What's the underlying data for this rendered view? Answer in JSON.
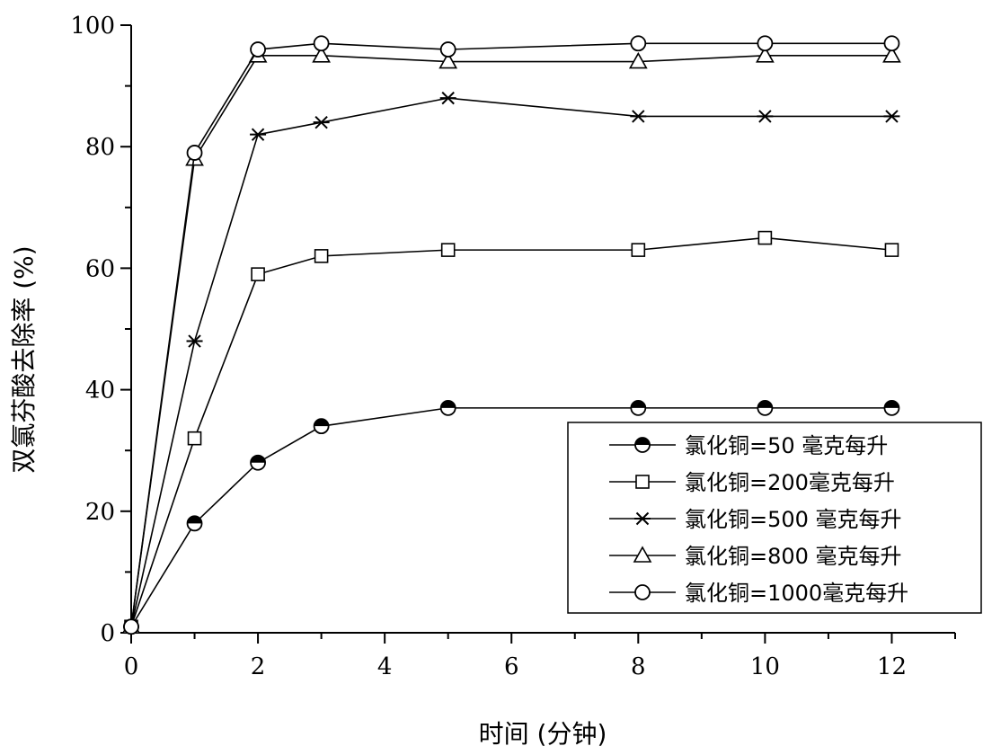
{
  "chart_data": {
    "type": "line",
    "xlabel": "时间 (分钟)",
    "ylabel": "双氯芬酸去除率 (%)",
    "xlim": [
      0,
      13
    ],
    "ylim": [
      0,
      100
    ],
    "xticks": [
      "0",
      "2",
      "4",
      "6",
      "8",
      "10",
      "12"
    ],
    "yticks": [
      "0",
      "20",
      "40",
      "60",
      "80",
      "100"
    ],
    "grid": false,
    "legend_position": "bottom-right",
    "x": [
      0,
      1,
      2,
      3,
      5,
      8,
      10,
      12
    ],
    "series": [
      {
        "name": "氯化铜=50 毫克每升",
        "marker": "half-filled-circle",
        "values": [
          1,
          18,
          28,
          34,
          37,
          37,
          37,
          37
        ]
      },
      {
        "name": "氯化铜=200毫克每升",
        "marker": "open-square",
        "values": [
          1,
          32,
          59,
          62,
          63,
          63,
          65,
          63
        ]
      },
      {
        "name": "氯化铜=500 毫克每升",
        "marker": "asterisk",
        "values": [
          1,
          48,
          82,
          84,
          88,
          85,
          85,
          85
        ]
      },
      {
        "name": "氯化铜=800 毫克每升",
        "marker": "open-triangle",
        "values": [
          1,
          78,
          95,
          95,
          94,
          94,
          95,
          95
        ]
      },
      {
        "name": "氯化铜=1000毫克每升",
        "marker": "open-circle",
        "values": [
          1,
          79,
          96,
          97,
          96,
          97,
          97,
          97
        ]
      }
    ]
  }
}
